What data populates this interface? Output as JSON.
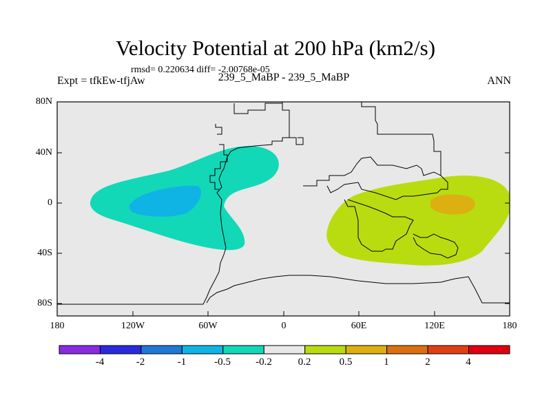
{
  "title": "Velocity Potential at 200 hPa (km2/s)",
  "stats": "rmsd= 0.220634 diff= -2.00768e-05",
  "left_label": "Expt = tfkEw-tfjAw",
  "center_label": "239_5_MaBP - 239_5_MaBP",
  "right_label": "ANN",
  "lat_labels": [
    "80N",
    "40N",
    "0",
    "40S",
    "80S"
  ],
  "lon_labels": [
    "180",
    "120W",
    "60W",
    "0",
    "60E",
    "120E",
    "180"
  ],
  "colorbar": {
    "labels": [
      "-4",
      "-2",
      "-1",
      "-0.5",
      "-0.2",
      "0.2",
      "0.5",
      "1",
      "2",
      "4"
    ],
    "colors": [
      "#8a2be2",
      "#2a2adc",
      "#1e78d8",
      "#10b4e4",
      "#12d8b8",
      "#e8e8e8",
      "#b8dc10",
      "#dcb010",
      "#dc7010",
      "#e04010",
      "#e00010"
    ]
  },
  "field_colors": {
    "background": "#e8e8e8",
    "neg_02": "#12d8b8",
    "neg_05": "#10b4e4",
    "pos_02": "#b8dc10",
    "pos_05": "#dcb010"
  }
}
